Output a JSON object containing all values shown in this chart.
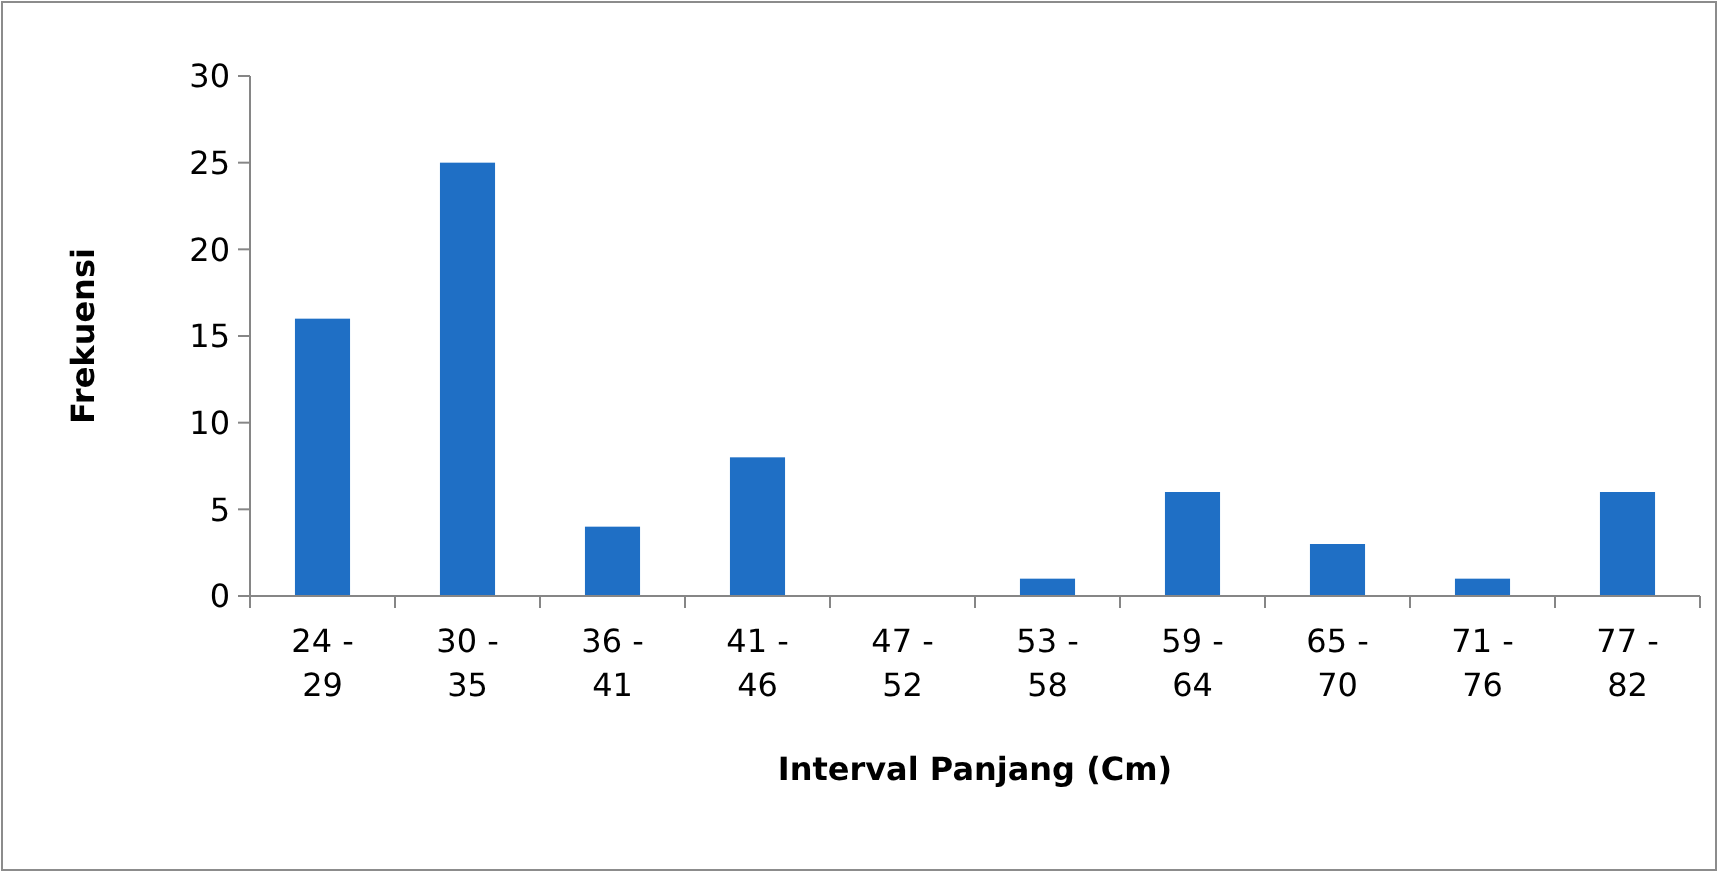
{
  "chart_data": {
    "type": "bar",
    "xlabel": "Interval Panjang (Cm)",
    "ylabel": "Frekuensi",
    "categories": [
      "24 - 29",
      "30 - 35",
      "36 - 41",
      "41 - 46",
      "47 - 52",
      "53 - 58",
      "59 - 64",
      "65 - 70",
      "71 - 76",
      "77 - 82"
    ],
    "values": [
      16,
      25,
      4,
      8,
      0,
      1,
      6,
      3,
      1,
      6
    ],
    "color": "#1f6fc5",
    "ylim": [
      0,
      30
    ],
    "yticks": [
      0,
      5,
      10,
      15,
      20,
      25,
      30
    ]
  }
}
